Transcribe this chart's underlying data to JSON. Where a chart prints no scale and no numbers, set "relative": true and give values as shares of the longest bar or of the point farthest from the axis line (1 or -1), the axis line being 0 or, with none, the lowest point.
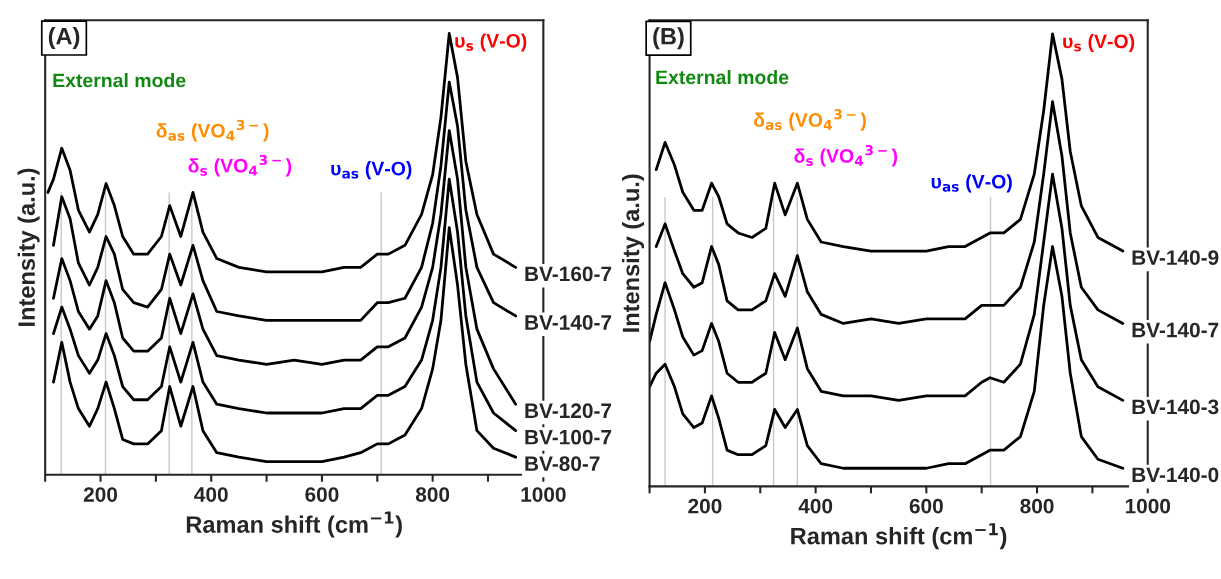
{
  "chart_data": [
    {
      "type": "line",
      "title": "(A)",
      "xlabel": "Raman shift (cm$^{−1}$)",
      "ylabel": "Intensity (a.u.)",
      "relative": true,
      "tick_labels": "x",
      "xlim": [
        100,
        1000
      ],
      "xticks": [
        {
          "value": 100,
          "label": null
        },
        200,
        {
          "value": 300,
          "label": null
        },
        400,
        {
          "value": 500,
          "label": null
        },
        600,
        {
          "value": 700,
          "label": null
        },
        800,
        {
          "value": 900,
          "label": null
        },
        1000
      ],
      "x": [
        105,
        115,
        130,
        145,
        160,
        180,
        195,
        210,
        225,
        240,
        260,
        285,
        310,
        325,
        345,
        367,
        385,
        410,
        450,
        500,
        550,
        600,
        640,
        670,
        700,
        720,
        750,
        780,
        800,
        815,
        830,
        845,
        860,
        880,
        910,
        950
      ],
      "series": [
        {
          "name": "BV-160-7",
          "color": "#000000",
          "values": [
            0.64,
            0.67,
            0.74,
            0.69,
            0.6,
            0.55,
            0.59,
            0.66,
            0.61,
            0.54,
            0.5,
            0.5,
            0.54,
            0.61,
            0.54,
            0.64,
            0.55,
            0.49,
            0.47,
            0.46,
            0.46,
            0.46,
            0.47,
            0.47,
            0.5,
            0.5,
            0.52,
            0.59,
            0.68,
            0.81,
            1.0,
            0.9,
            0.71,
            0.59,
            0.5,
            0.47
          ]
        },
        {
          "name": "BV-140-7",
          "color": "#000000",
          "values": [
            null,
            0.52,
            0.63,
            0.58,
            0.48,
            0.43,
            0.47,
            0.54,
            0.5,
            0.42,
            0.39,
            0.38,
            0.42,
            0.5,
            0.43,
            0.52,
            0.44,
            0.37,
            0.36,
            0.35,
            0.35,
            0.35,
            0.35,
            0.35,
            0.39,
            0.39,
            0.4,
            0.47,
            0.57,
            0.7,
            0.89,
            0.79,
            0.6,
            0.47,
            0.39,
            0.36
          ]
        },
        {
          "name": "BV-120-7",
          "color": "#000000",
          "values": [
            null,
            0.4,
            0.49,
            0.44,
            0.37,
            0.33,
            0.36,
            0.44,
            0.39,
            0.31,
            0.28,
            0.28,
            0.31,
            0.4,
            0.32,
            0.41,
            0.33,
            0.27,
            0.26,
            0.25,
            0.26,
            0.25,
            0.26,
            0.26,
            0.29,
            0.29,
            0.31,
            0.38,
            0.47,
            0.59,
            0.78,
            0.67,
            0.47,
            0.33,
            0.24,
            0.16
          ]
        },
        {
          "name": "BV-100-7",
          "color": "#000000",
          "values": [
            null,
            0.32,
            0.38,
            0.33,
            0.27,
            0.23,
            0.26,
            0.32,
            0.27,
            0.2,
            0.17,
            0.17,
            0.2,
            0.29,
            0.21,
            0.3,
            0.21,
            0.16,
            0.15,
            0.14,
            0.14,
            0.14,
            0.15,
            0.15,
            0.18,
            0.18,
            0.2,
            0.26,
            0.35,
            0.47,
            0.67,
            0.55,
            0.36,
            0.21,
            0.14,
            0.1
          ]
        },
        {
          "name": "BV-80-7",
          "color": "#000000",
          "values": [
            null,
            0.21,
            0.3,
            0.21,
            0.15,
            0.11,
            0.15,
            0.21,
            0.15,
            0.08,
            0.07,
            0.07,
            0.1,
            0.2,
            0.11,
            0.2,
            0.1,
            0.05,
            0.04,
            0.03,
            0.03,
            0.03,
            0.04,
            0.05,
            0.07,
            0.07,
            0.09,
            0.15,
            0.24,
            0.35,
            0.56,
            0.43,
            0.25,
            0.1,
            0.06,
            0.04
          ]
        }
      ],
      "ref_lines": [
        {
          "axis": "x",
          "value": 129,
          "color": "#c8c8c8"
        },
        {
          "axis": "x",
          "value": 209,
          "color": "#c8c8c8"
        },
        {
          "axis": "x",
          "value": 324,
          "color": "#c8c8c8"
        },
        {
          "axis": "x",
          "value": 365,
          "color": "#c8c8c8"
        },
        {
          "axis": "x",
          "value": 707,
          "color": "#c8c8c8"
        }
      ],
      "annotations": [
        "External mode",
        "δ$_{as}$ (VO$_{4}$$^{3−}$)",
        "δ$_{s}$ (VO$_{4}$$^{3−}$)",
        "υ$_{as}$ (V-O)",
        "υ$_{s}$ (V-O)"
      ]
    },
    {
      "type": "line",
      "title": "(B)",
      "xlabel": "Raman shift (cm$^{−1}$)",
      "ylabel": "Intensity (a.u.)",
      "relative": true,
      "tick_labels": "x",
      "xlim": [
        100,
        1000
      ],
      "xticks": [
        {
          "value": 100,
          "label": null
        },
        200,
        {
          "value": 300,
          "label": null
        },
        400,
        {
          "value": 500,
          "label": null
        },
        600,
        {
          "value": 700,
          "label": null
        },
        800,
        {
          "value": 900,
          "label": null
        },
        1000
      ],
      "x": [
        100,
        112,
        128,
        145,
        160,
        180,
        195,
        212,
        225,
        240,
        260,
        285,
        310,
        326,
        345,
        367,
        385,
        410,
        450,
        500,
        550,
        600,
        640,
        670,
        700,
        715,
        740,
        770,
        795,
        812,
        828,
        845,
        860,
        880,
        910,
        955
      ],
      "series": [
        {
          "name": "BV-140-9",
          "color": "#000000",
          "values": [
            null,
            0.7,
            0.76,
            0.71,
            0.65,
            0.61,
            0.61,
            0.67,
            0.64,
            0.58,
            0.56,
            0.55,
            0.57,
            0.67,
            0.6,
            0.67,
            0.59,
            0.54,
            0.53,
            0.52,
            0.52,
            0.52,
            0.53,
            0.53,
            0.55,
            0.56,
            0.56,
            0.59,
            0.69,
            0.83,
            1.0,
            0.9,
            0.74,
            0.62,
            0.55,
            0.52
          ]
        },
        {
          "name": "BV-140-7",
          "color": "#000000",
          "values": [
            null,
            0.53,
            0.58,
            0.52,
            0.47,
            0.44,
            0.45,
            0.53,
            0.49,
            0.41,
            0.39,
            0.39,
            0.41,
            0.47,
            0.42,
            0.51,
            0.43,
            0.38,
            0.36,
            0.37,
            0.36,
            0.37,
            0.37,
            0.37,
            0.4,
            0.4,
            0.4,
            0.44,
            0.54,
            0.69,
            0.85,
            0.73,
            0.56,
            0.44,
            0.39,
            0.36
          ]
        },
        {
          "name": "BV-140-3",
          "color": "#000000",
          "values": [
            0.32,
            0.38,
            0.45,
            0.39,
            0.33,
            0.29,
            0.3,
            0.36,
            0.32,
            0.25,
            0.23,
            0.23,
            0.25,
            0.34,
            0.28,
            0.35,
            0.26,
            0.21,
            0.2,
            0.2,
            0.19,
            0.2,
            0.2,
            0.2,
            0.23,
            0.24,
            0.23,
            0.27,
            0.38,
            0.54,
            0.69,
            0.57,
            0.4,
            0.28,
            0.22,
            0.19
          ]
        },
        {
          "name": "BV-140-0",
          "color": "#000000",
          "values": [
            0.22,
            0.25,
            0.27,
            0.22,
            0.16,
            0.13,
            0.14,
            0.2,
            0.15,
            0.08,
            0.07,
            0.07,
            0.09,
            0.17,
            0.13,
            0.17,
            0.09,
            0.05,
            0.04,
            0.04,
            0.04,
            0.04,
            0.05,
            0.05,
            0.07,
            0.08,
            0.08,
            0.11,
            0.21,
            0.4,
            0.53,
            0.42,
            0.25,
            0.11,
            0.06,
            0.04
          ]
        }
      ],
      "ref_lines": [
        {
          "axis": "x",
          "value": 128,
          "color": "#c8c8c8"
        },
        {
          "axis": "x",
          "value": 214,
          "color": "#c8c8c8"
        },
        {
          "axis": "x",
          "value": 324,
          "color": "#c8c8c8"
        },
        {
          "axis": "x",
          "value": 367,
          "color": "#c8c8c8"
        },
        {
          "axis": "x",
          "value": 716,
          "color": "#c8c8c8"
        }
      ],
      "annotations": [
        "External mode",
        "δ$_{as}$ (VO$_{4}$$^{3−}$)",
        "δ$_{s}$ (VO$_{4}$$^{3−}$)",
        "υ$_{as}$ (V-O)",
        "υ$_{s}$ (V-O)"
      ]
    }
  ]
}
